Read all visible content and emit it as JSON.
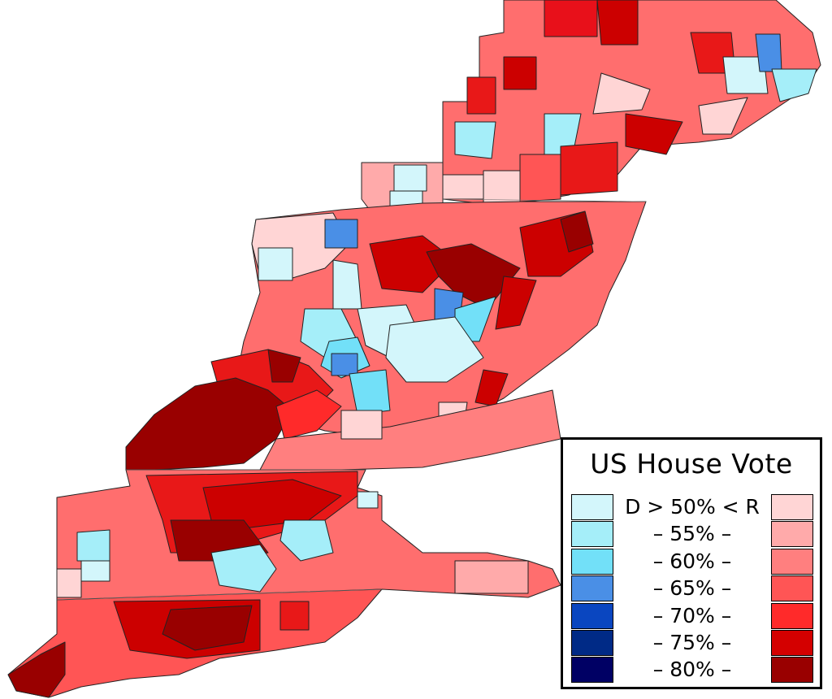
{
  "legend": {
    "title": "US House Vote",
    "rows": [
      {
        "label": "D > 50% < R",
        "d_color": "#d3f6fb",
        "r_color": "#ffd5d5"
      },
      {
        "label": "– 55% –",
        "d_color": "#a5eef9",
        "r_color": "#ffaaaa"
      },
      {
        "label": "– 60% –",
        "d_color": "#72e0f8",
        "r_color": "#ff7f7f"
      },
      {
        "label": "– 65% –",
        "d_color": "#4a8fe6",
        "r_color": "#ff5555"
      },
      {
        "label": "– 70% –",
        "d_color": "#0a46c0",
        "r_color": "#ff2a2a"
      },
      {
        "label": "– 75% –",
        "d_color": "#002a86",
        "r_color": "#d40000"
      },
      {
        "label": "– 80% –",
        "d_color": "#000064",
        "r_color": "#990000"
      }
    ]
  }
}
